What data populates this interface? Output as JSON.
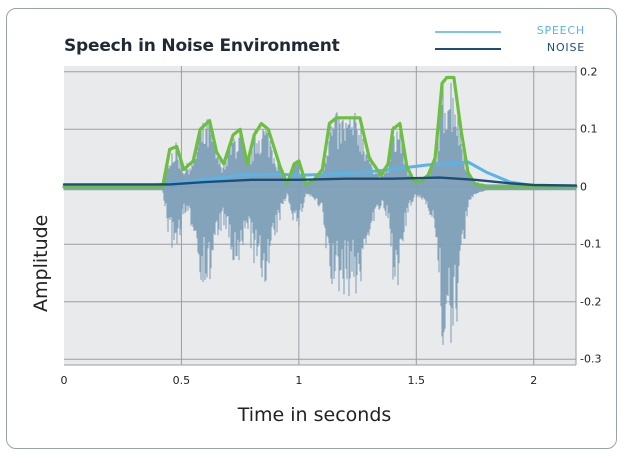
{
  "chart_data": {
    "type": "line",
    "title": "Speech in Noise Environment",
    "xlabel": "Time in seconds",
    "ylabel": "Amplitude",
    "xlim": [
      0,
      2.18
    ],
    "ylim": [
      -0.31,
      0.21
    ],
    "x_ticks": [
      "0",
      "0.5",
      "1",
      "1.5",
      "2"
    ],
    "x_tick_values": [
      0,
      0.5,
      1,
      1.5,
      2
    ],
    "y_ticks": [
      "0.2",
      "0.1",
      "0",
      "-0.1",
      "-0.2",
      "-0.3"
    ],
    "y_tick_values": [
      0.2,
      0.1,
      0,
      -0.1,
      -0.2,
      -0.3
    ],
    "grid": true,
    "legend_position": "top-right",
    "legend": [
      {
        "label": "SPEECH",
        "color": "#5ab4e6"
      },
      {
        "label": "NOISE",
        "color": "#1b4f7a"
      }
    ],
    "series": [
      {
        "name": "SPEECH",
        "color": "#5ab4e6",
        "x": [
          0,
          0.3,
          0.45,
          0.6,
          0.75,
          0.9,
          1.0,
          1.15,
          1.3,
          1.45,
          1.55,
          1.65,
          1.72,
          1.8,
          1.9,
          2.0,
          2.18
        ],
        "y": [
          0,
          0,
          0.005,
          0.012,
          0.02,
          0.022,
          0.02,
          0.022,
          0.026,
          0.033,
          0.038,
          0.04,
          0.043,
          0.025,
          0.008,
          0.002,
          0
        ]
      },
      {
        "name": "",
        "color": "#6cbf3f",
        "x": [
          0,
          0.42,
          0.45,
          0.48,
          0.51,
          0.55,
          0.58,
          0.62,
          0.65,
          0.68,
          0.72,
          0.75,
          0.78,
          0.81,
          0.84,
          0.87,
          0.92,
          0.95,
          0.98,
          1.0,
          1.03,
          1.06,
          1.1,
          1.13,
          1.16,
          1.2,
          1.26,
          1.3,
          1.35,
          1.38,
          1.4,
          1.43,
          1.46,
          1.49,
          1.52,
          1.55,
          1.58,
          1.61,
          1.63,
          1.66,
          1.69,
          1.72,
          1.75,
          1.8,
          2.18
        ],
        "y": [
          0,
          0,
          0.065,
          0.07,
          0.03,
          0.045,
          0.1,
          0.115,
          0.06,
          0.04,
          0.09,
          0.1,
          0.04,
          0.09,
          0.11,
          0.1,
          0.035,
          0.005,
          0.04,
          0.045,
          0.005,
          0.01,
          0.03,
          0.11,
          0.12,
          0.12,
          0.12,
          0.05,
          0.02,
          0.04,
          0.1,
          0.11,
          0.035,
          0.01,
          0.01,
          0.02,
          0.05,
          0.18,
          0.19,
          0.19,
          0.1,
          0.025,
          0.005,
          0,
          0
        ]
      },
      {
        "name": "NOISE",
        "color": "#1b4f7a",
        "x": [
          0,
          0.45,
          0.6,
          0.8,
          1.0,
          1.2,
          1.4,
          1.6,
          1.75,
          1.9,
          2.0,
          2.18
        ],
        "y": [
          0.004,
          0.004,
          0.008,
          0.012,
          0.012,
          0.014,
          0.014,
          0.016,
          0.012,
          0.006,
          0.003,
          0.002
        ]
      }
    ]
  }
}
